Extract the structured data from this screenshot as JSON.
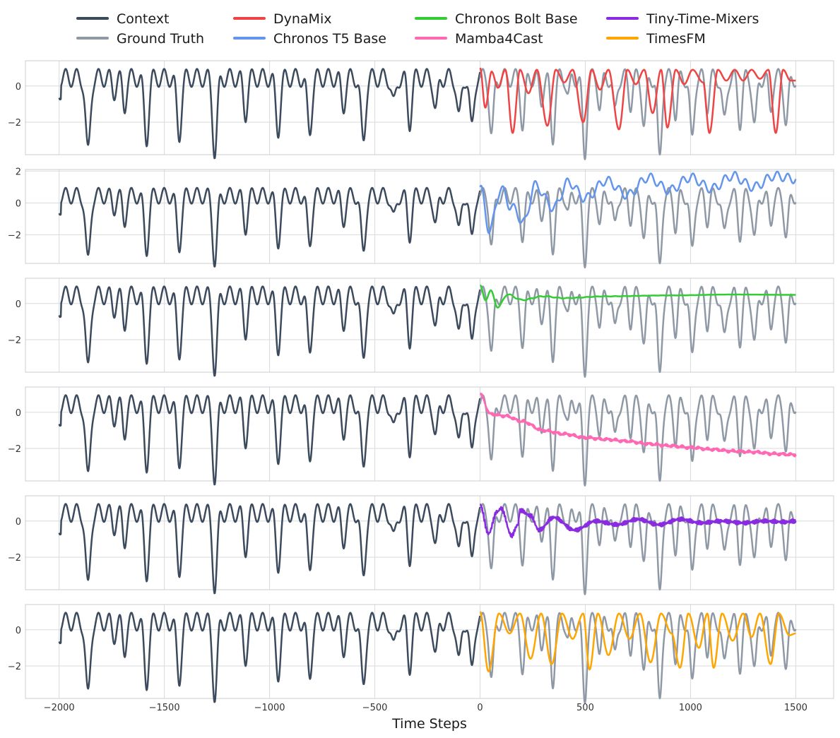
{
  "chart_data": {
    "type": "line",
    "xlabel": "Time Steps",
    "xlim": [
      -2160,
      1680
    ],
    "x_ticks": [
      -2000,
      -1500,
      -1000,
      -500,
      0,
      500,
      1000,
      1500
    ],
    "x_tick_labels": [
      "−2000",
      "−1500",
      "−1000",
      "−500",
      "0",
      "500",
      "1000",
      "1500"
    ],
    "y_ticks": [
      0,
      -2
    ],
    "y_tick_labels": [
      "0",
      "−2"
    ],
    "grid": true,
    "legend": {
      "placement": "top",
      "columns": 4,
      "entries": [
        {
          "name": "Context",
          "color": "#3b4a5c"
        },
        {
          "name": "Ground Truth",
          "color": "#8f99a6"
        },
        {
          "name": "DynaMix",
          "color": "#ef4444"
        },
        {
          "name": "Chronos T5 Base",
          "color": "#6495ed"
        },
        {
          "name": "Chronos Bolt Base",
          "color": "#32cd32"
        },
        {
          "name": "Mamba4Cast",
          "color": "#ff69b4"
        },
        {
          "name": "Tiny-Time-Mixers",
          "color": "#8a2be2"
        },
        {
          "name": "TimesFM",
          "color": "#ffa500"
        }
      ]
    },
    "context": {
      "name": "Context",
      "color": "#3b4a5c",
      "x_range": [
        -2000,
        0
      ]
    },
    "ground_truth": {
      "name": "Ground Truth",
      "color": "#8f99a6",
      "x_range": [
        0,
        1500
      ]
    },
    "panels": [
      {
        "forecast": "DynaMix",
        "color": "#ef4444",
        "ylim": [
          -3.8,
          1.4
        ],
        "behavior": "oscillating",
        "points": [
          [
            0,
            1.0
          ],
          [
            25,
            -1.2
          ],
          [
            55,
            0.8
          ],
          [
            85,
            -0.1
          ],
          [
            120,
            0.9
          ],
          [
            155,
            -2.6
          ],
          [
            190,
            0.9
          ],
          [
            230,
            -0.4
          ],
          [
            270,
            0.9
          ],
          [
            320,
            -2.2
          ],
          [
            360,
            0.9
          ],
          [
            400,
            0.2
          ],
          [
            440,
            0.9
          ],
          [
            490,
            -2.0
          ],
          [
            530,
            0.9
          ],
          [
            570,
            -0.2
          ],
          [
            610,
            0.9
          ],
          [
            660,
            -2.4
          ],
          [
            700,
            0.9
          ],
          [
            740,
            0.1
          ],
          [
            780,
            0.9
          ],
          [
            820,
            -1.5
          ],
          [
            860,
            0.9
          ],
          [
            890,
            -2.3
          ],
          [
            930,
            0.9
          ],
          [
            970,
            0.1
          ],
          [
            1010,
            0.9
          ],
          [
            1060,
            0.2
          ],
          [
            1090,
            -2.6
          ],
          [
            1130,
            0.9
          ],
          [
            1170,
            0.3
          ],
          [
            1210,
            0.9
          ],
          [
            1250,
            0.3
          ],
          [
            1290,
            0.9
          ],
          [
            1330,
            0.4
          ],
          [
            1370,
            0.9
          ],
          [
            1405,
            -2.6
          ],
          [
            1440,
            0.9
          ],
          [
            1475,
            0.3
          ],
          [
            1500,
            0.3
          ]
        ]
      },
      {
        "forecast": "Chronos T5 Base",
        "color": "#6495ed",
        "ylim": [
          -3.8,
          2.1
        ],
        "behavior": "drifting-up",
        "points": [
          [
            0,
            1.0
          ],
          [
            45,
            -1.7
          ],
          [
            100,
            0.9
          ],
          [
            145,
            -0.2
          ],
          [
            210,
            -1.2
          ],
          [
            260,
            1.1
          ],
          [
            350,
            -0.3
          ],
          [
            420,
            1.3
          ],
          [
            500,
            0.3
          ],
          [
            600,
            1.4
          ],
          [
            700,
            0.5
          ],
          [
            800,
            1.6
          ],
          [
            900,
            0.8
          ],
          [
            1000,
            1.6
          ],
          [
            1100,
            0.9
          ],
          [
            1200,
            1.7
          ],
          [
            1300,
            1.0
          ],
          [
            1400,
            1.7
          ],
          [
            1500,
            1.5
          ]
        ]
      },
      {
        "forecast": "Chronos Bolt Base",
        "color": "#32cd32",
        "ylim": [
          -3.8,
          1.4
        ],
        "behavior": "damped",
        "points": [
          [
            0,
            1.0
          ],
          [
            25,
            0.2
          ],
          [
            50,
            0.7
          ],
          [
            85,
            -0.2
          ],
          [
            130,
            0.5
          ],
          [
            200,
            0.2
          ],
          [
            300,
            0.4
          ],
          [
            400,
            0.3
          ],
          [
            600,
            0.4
          ],
          [
            900,
            0.45
          ],
          [
            1200,
            0.5
          ],
          [
            1500,
            0.48
          ]
        ]
      },
      {
        "forecast": "Mamba4Cast",
        "color": "#ff69b4",
        "ylim": [
          -3.8,
          1.4
        ],
        "behavior": "drifting-down",
        "points": [
          [
            0,
            1.0
          ],
          [
            50,
            -0.1
          ],
          [
            120,
            -0.2
          ],
          [
            200,
            -0.5
          ],
          [
            300,
            -1.0
          ],
          [
            400,
            -1.2
          ],
          [
            500,
            -1.4
          ],
          [
            600,
            -1.5
          ],
          [
            700,
            -1.6
          ],
          [
            800,
            -1.75
          ],
          [
            900,
            -1.85
          ],
          [
            1000,
            -1.95
          ],
          [
            1100,
            -2.05
          ],
          [
            1200,
            -2.15
          ],
          [
            1300,
            -2.2
          ],
          [
            1400,
            -2.3
          ],
          [
            1500,
            -2.35
          ]
        ]
      },
      {
        "forecast": "Tiny-Time-Mixers",
        "color": "#8a2be2",
        "ylim": [
          -3.8,
          1.4
        ],
        "behavior": "noisy-flat",
        "points": [
          [
            0,
            0.9
          ],
          [
            40,
            -0.7
          ],
          [
            80,
            0.5
          ],
          [
            100,
            0.7
          ],
          [
            150,
            -0.8
          ],
          [
            180,
            -0.2
          ],
          [
            190,
            0.6
          ],
          [
            240,
            0.3
          ],
          [
            280,
            -0.5
          ],
          [
            350,
            0.2
          ],
          [
            450,
            -0.5
          ],
          [
            550,
            0.0
          ],
          [
            650,
            -0.2
          ],
          [
            750,
            0.1
          ],
          [
            850,
            -0.2
          ],
          [
            950,
            0.1
          ],
          [
            1050,
            -0.1
          ],
          [
            1150,
            0.0
          ],
          [
            1250,
            -0.1
          ],
          [
            1350,
            0.0
          ],
          [
            1450,
            -0.05
          ],
          [
            1500,
            0.0
          ]
        ]
      },
      {
        "forecast": "TimesFM",
        "color": "#ffa500",
        "ylim": [
          -3.8,
          1.4
        ],
        "behavior": "oscillating",
        "points": [
          [
            0,
            1.0
          ],
          [
            40,
            -2.3
          ],
          [
            90,
            0.9
          ],
          [
            140,
            -0.2
          ],
          [
            190,
            0.9
          ],
          [
            240,
            -1.6
          ],
          [
            290,
            0.9
          ],
          [
            340,
            -1.9
          ],
          [
            390,
            0.9
          ],
          [
            440,
            -0.5
          ],
          [
            490,
            0.9
          ],
          [
            520,
            -2.2
          ],
          [
            560,
            0.9
          ],
          [
            610,
            -1.4
          ],
          [
            660,
            0.9
          ],
          [
            710,
            -0.5
          ],
          [
            760,
            0.9
          ],
          [
            810,
            -1.8
          ],
          [
            860,
            0.9
          ],
          [
            910,
            -0.2
          ],
          [
            950,
            -2.1
          ],
          [
            990,
            0.9
          ],
          [
            1040,
            -1.0
          ],
          [
            1080,
            0.9
          ],
          [
            1110,
            -2.1
          ],
          [
            1150,
            0.9
          ],
          [
            1200,
            -0.6
          ],
          [
            1250,
            0.9
          ],
          [
            1290,
            -0.4
          ],
          [
            1330,
            0.9
          ],
          [
            1380,
            -1.9
          ],
          [
            1420,
            0.9
          ],
          [
            1470,
            -0.3
          ],
          [
            1500,
            -0.2
          ]
        ]
      }
    ]
  }
}
